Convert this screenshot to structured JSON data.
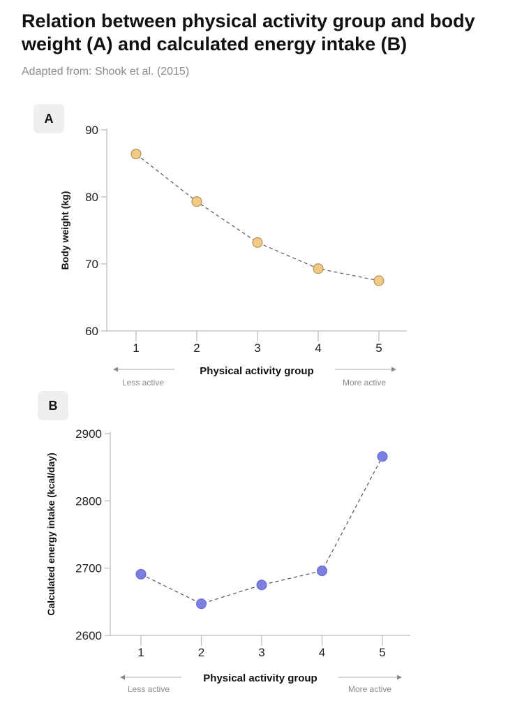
{
  "title": "Relation between physical activity group and body weight (A) and calculated energy intake (B)",
  "subtitle_label": "Adapted from:",
  "subtitle_source": "Shook et al. (2015)",
  "chart_data": [
    {
      "panel": "A",
      "type": "scatter",
      "x": [
        1,
        2,
        3,
        4,
        5
      ],
      "y": [
        86.4,
        79.3,
        73.2,
        69.3,
        67.5
      ],
      "xlabel": "Physical activity group",
      "ylabel": "Body weight (kg)",
      "xlim": [
        1,
        5
      ],
      "ylim": [
        60,
        90
      ],
      "yticks": [
        60,
        70,
        80,
        90
      ],
      "xticks": [
        1,
        2,
        3,
        4,
        5
      ],
      "left_note": "Less active",
      "right_note": "More active",
      "color": "#f3c987",
      "stroke": "#a88645",
      "connector": "dashed",
      "grid": false
    },
    {
      "panel": "B",
      "type": "scatter",
      "x": [
        1,
        2,
        3,
        4,
        5
      ],
      "y": [
        2691,
        2647,
        2675,
        2696,
        2866
      ],
      "xlabel": "Physical activity group",
      "ylabel": "Calculated energy intake (kcal/day)",
      "xlim": [
        1,
        5
      ],
      "ylim": [
        2600,
        2900
      ],
      "yticks": [
        2600,
        2700,
        2800,
        2900
      ],
      "xticks": [
        1,
        2,
        3,
        4,
        5
      ],
      "left_note": "Less active",
      "right_note": "More active",
      "color": "#7b7fe0",
      "stroke": "#6064c9",
      "connector": "dashed",
      "grid": false
    }
  ]
}
